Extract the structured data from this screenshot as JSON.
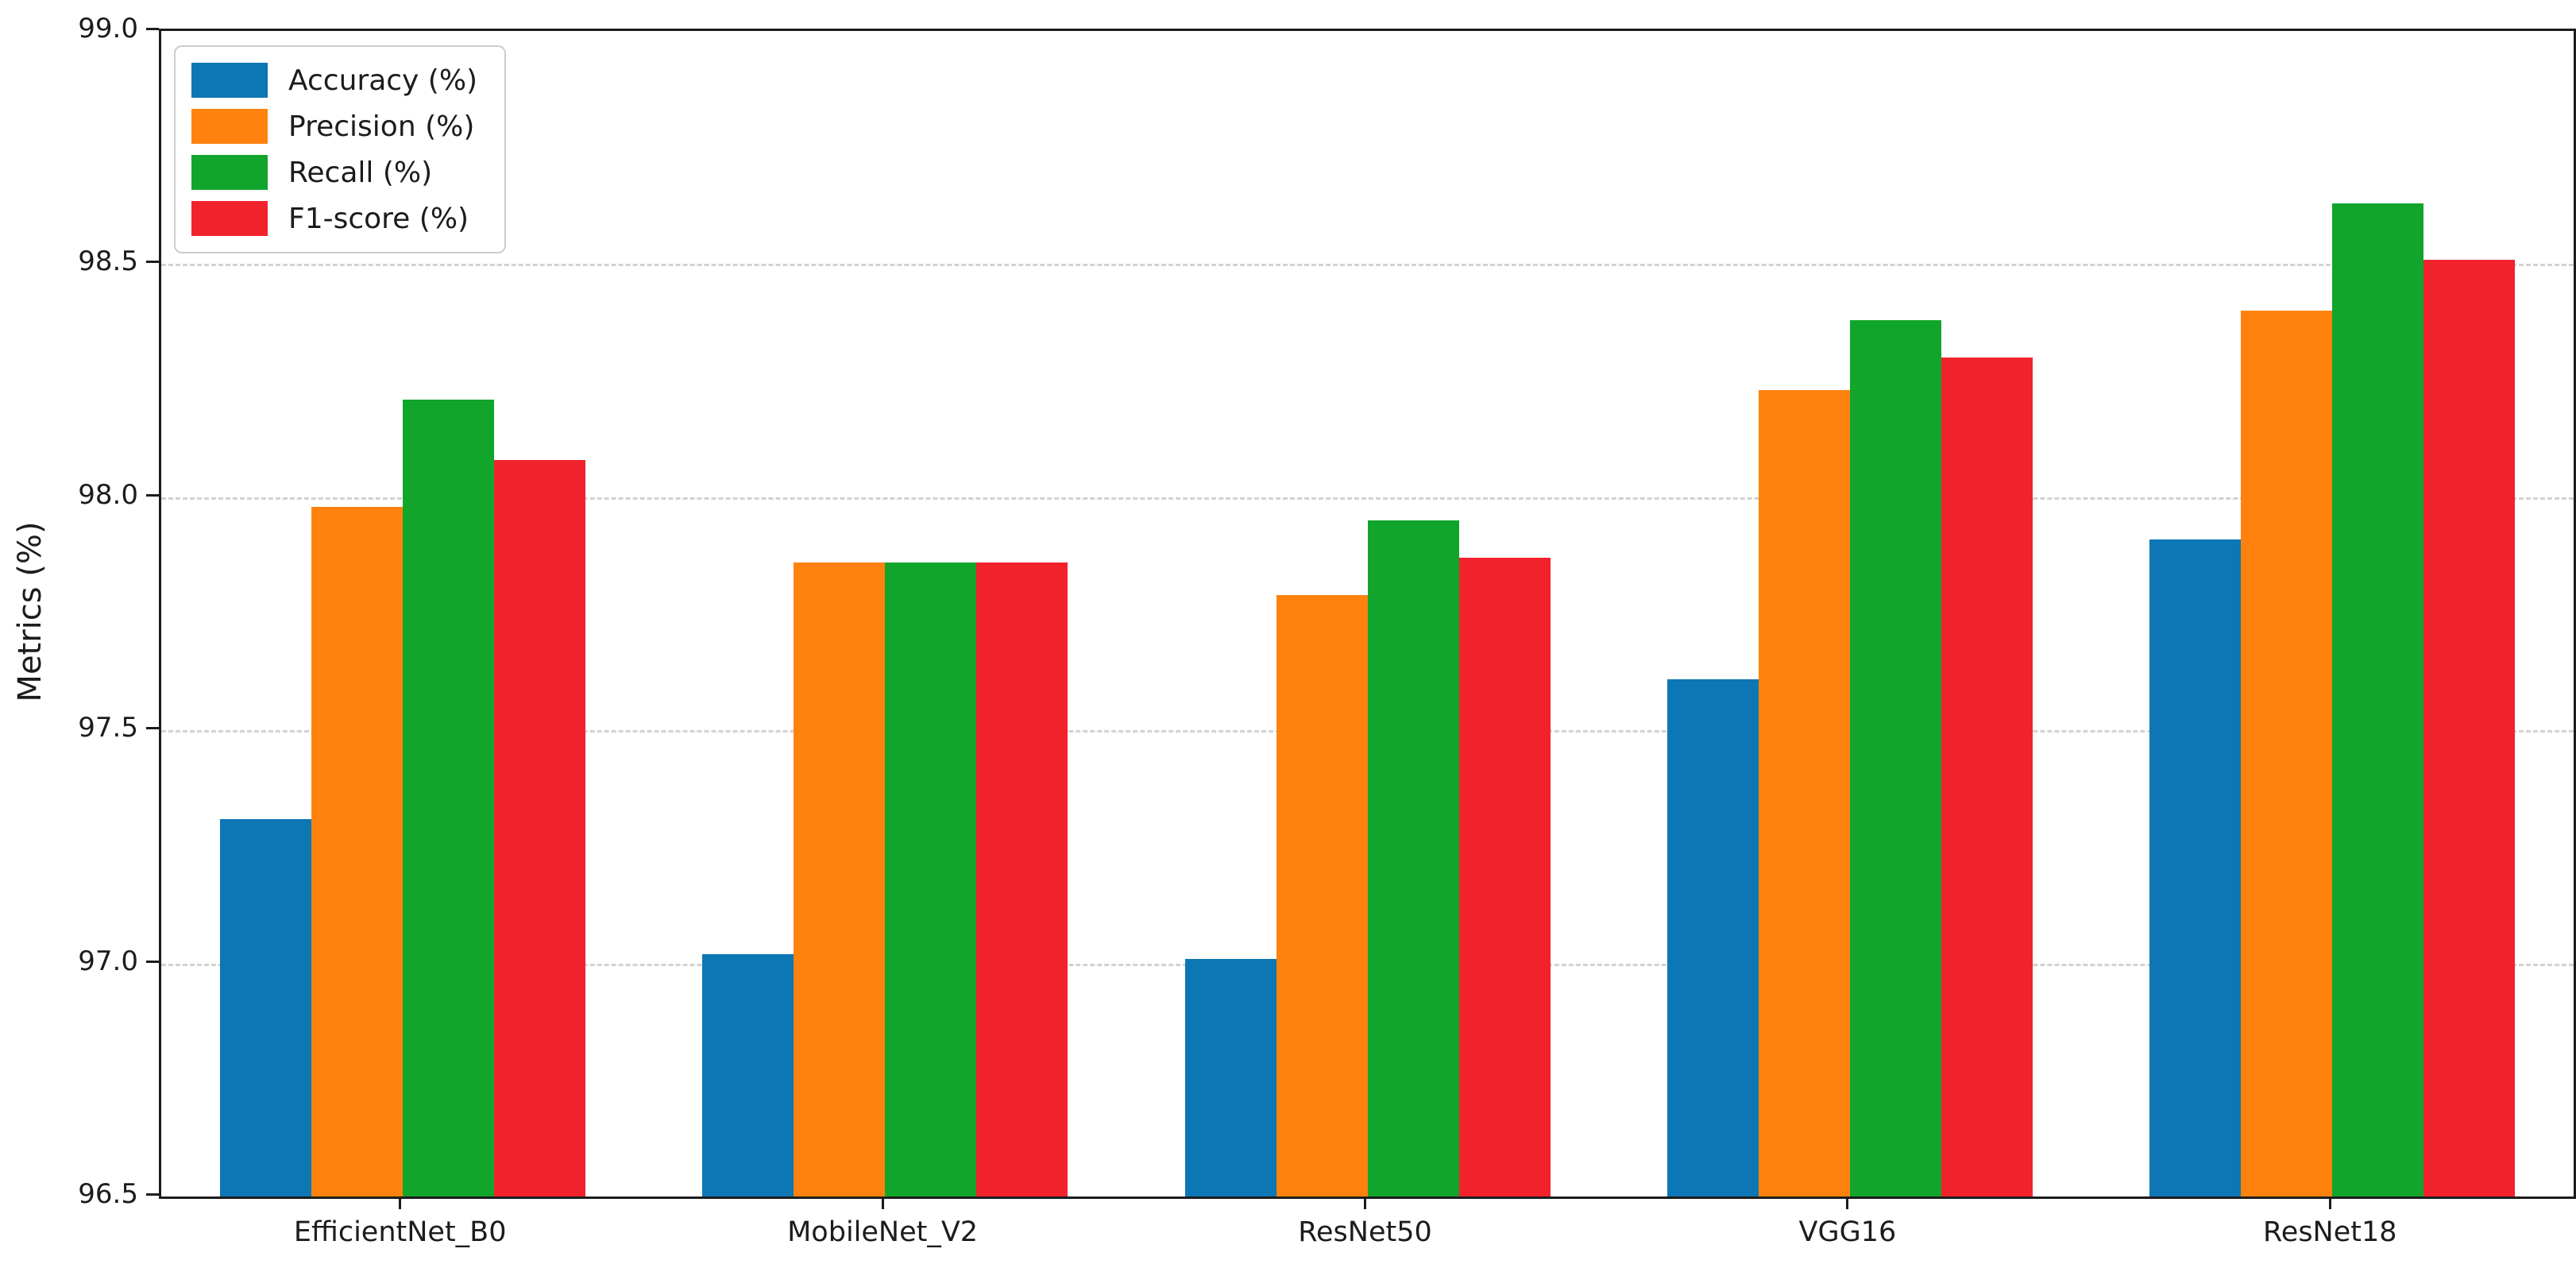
{
  "chart_data": {
    "type": "bar",
    "title": "",
    "xlabel": "",
    "ylabel": "Metrics (%)",
    "ylim": [
      96.5,
      99.0
    ],
    "yticks": [
      96.5,
      97.0,
      97.5,
      98.0,
      98.5,
      99.0
    ],
    "ytick_labels": [
      "96.5",
      "97.0",
      "97.5",
      "98.0",
      "98.5",
      "99.0"
    ],
    "gridline_values": [
      97.0,
      97.5,
      98.0,
      98.5
    ],
    "grid": "horizontal-dashed",
    "categories": [
      "EfficientNet_B0",
      "MobileNet_V2",
      "ResNet50",
      "VGG16",
      "ResNet18"
    ],
    "series": [
      {
        "name": "Accuracy (%)",
        "color": "#0d76b4",
        "values": [
          97.31,
          97.02,
          97.01,
          97.61,
          97.91
        ]
      },
      {
        "name": "Precision (%)",
        "color": "#ff820e",
        "values": [
          97.98,
          97.86,
          97.79,
          98.23,
          98.4
        ]
      },
      {
        "name": "Recall (%)",
        "color": "#11a52c",
        "values": [
          98.21,
          97.86,
          97.95,
          98.38,
          98.63
        ]
      },
      {
        "name": "F1-score (%)",
        "color": "#f2222d",
        "values": [
          98.08,
          97.86,
          97.87,
          98.3,
          98.51
        ]
      }
    ],
    "legend": {
      "position": "upper-left",
      "entries": [
        "Accuracy (%)",
        "Precision (%)",
        "Recall (%)",
        "F1-score (%)"
      ]
    },
    "colors": {
      "accuracy": "#0d76b4",
      "precision": "#ff820e",
      "recall": "#11a52c",
      "f1_score": "#f2222d",
      "axis": "#1c1c1c",
      "grid": "#d2d2d2"
    }
  }
}
